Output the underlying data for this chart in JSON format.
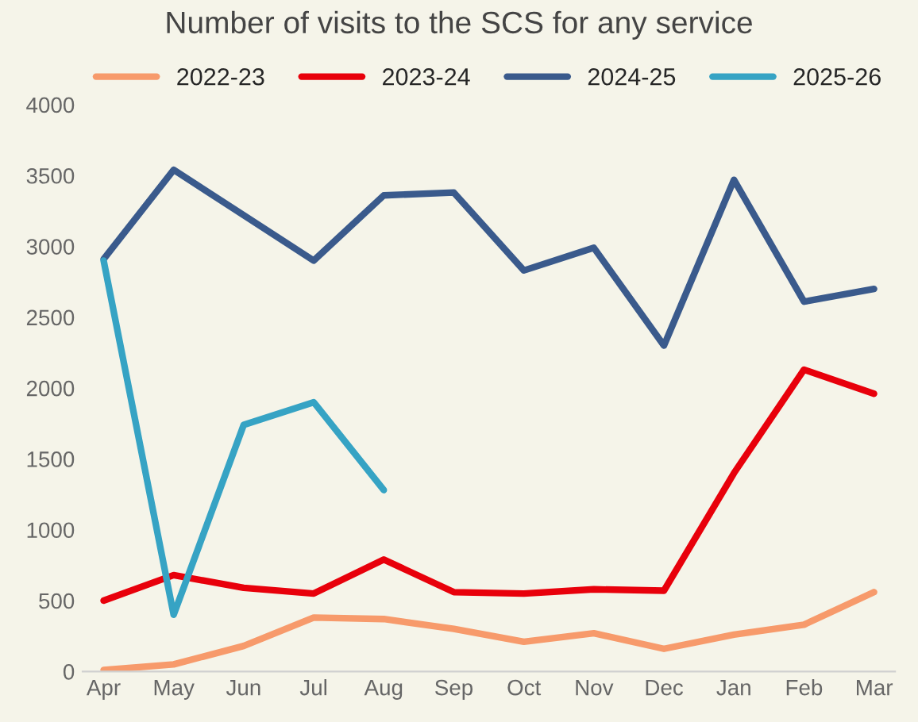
{
  "chart_data": {
    "type": "line",
    "title": "Number of visits to the SCS for any service",
    "categories": [
      "Apr",
      "May",
      "Jun",
      "Jul",
      "Aug",
      "Sep",
      "Oct",
      "Nov",
      "Dec",
      "Jan",
      "Feb",
      "Mar"
    ],
    "series": [
      {
        "name": "2022-23",
        "color": "#f79a6b",
        "values": [
          10,
          50,
          180,
          380,
          370,
          300,
          210,
          270,
          160,
          260,
          330,
          560
        ]
      },
      {
        "name": "2023-24",
        "color": "#e8000b",
        "values": [
          500,
          680,
          590,
          550,
          790,
          560,
          550,
          580,
          570,
          1400,
          2130,
          1960
        ]
      },
      {
        "name": "2024-25",
        "color": "#3a5a8c",
        "values": [
          2910,
          3540,
          3220,
          2900,
          3360,
          3380,
          2830,
          2990,
          2300,
          3470,
          2610,
          2700
        ]
      },
      {
        "name": "2025-26",
        "color": "#36a3c4",
        "values": [
          2900,
          400,
          1740,
          1900,
          1280,
          null,
          null,
          null,
          null,
          null,
          null,
          null
        ]
      }
    ],
    "ylim": [
      0,
      4000
    ],
    "yticks": [
      0,
      500,
      1000,
      1500,
      2000,
      2500,
      3000,
      3500,
      4000
    ],
    "grid": false,
    "legend": "top",
    "marker": "none",
    "line_style": "solid"
  }
}
